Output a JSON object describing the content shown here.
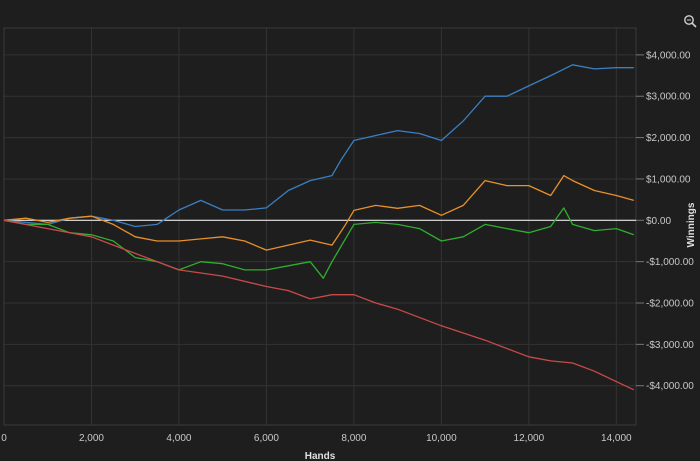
{
  "chart_data": {
    "type": "line",
    "title": "",
    "xlabel": "Hands",
    "ylabel": "Winnings",
    "xlim": [
      0,
      14450
    ],
    "ylim": [
      -4950,
      4650
    ],
    "grid": true,
    "legend": "none",
    "x_ticks": [
      "0",
      "2,000",
      "4,000",
      "6,000",
      "8,000",
      "10,000",
      "12,000",
      "14,000"
    ],
    "x_tick_values": [
      0,
      2000,
      4000,
      6000,
      8000,
      10000,
      12000,
      14000
    ],
    "y_ticks": [
      "$4,000.00",
      "$3,000.00",
      "$2,000.00",
      "$1,000.00",
      "$0.00",
      "-$1,000.00",
      "-$2,000.00",
      "-$3,000.00",
      "-$4,000.00"
    ],
    "y_tick_values": [
      4000,
      3000,
      2000,
      1000,
      0,
      -1000,
      -2000,
      -3000,
      -4000
    ],
    "zero_line_color": "#e6e6e6",
    "series": [
      {
        "color": "#3a7fc1",
        "x": [
          0,
          500,
          1000,
          1500,
          2000,
          2500,
          3000,
          3500,
          4000,
          4500,
          5000,
          5500,
          6000,
          6500,
          7000,
          7500,
          7700,
          8000,
          8500,
          9000,
          9500,
          10000,
          10500,
          11000,
          11500,
          12000,
          12500,
          13000,
          13500,
          14000,
          14400
        ],
        "y": [
          0,
          -50,
          -100,
          50,
          100,
          0,
          -150,
          -100,
          250,
          480,
          250,
          250,
          300,
          720,
          960,
          1080,
          1450,
          1930,
          2050,
          2170,
          2100,
          1930,
          2400,
          3000,
          3000,
          3250,
          3500,
          3760,
          3660,
          3690,
          3690
        ]
      },
      {
        "color": "#e8902a",
        "x": [
          0,
          500,
          1000,
          1500,
          2000,
          2500,
          3000,
          3500,
          4000,
          4500,
          5000,
          5500,
          6000,
          6500,
          7000,
          7500,
          7800,
          8000,
          8500,
          9000,
          9500,
          10000,
          10500,
          11000,
          11500,
          12000,
          12500,
          12800,
          13000,
          13500,
          14000,
          14400
        ],
        "y": [
          0,
          50,
          -50,
          50,
          100,
          -100,
          -400,
          -500,
          -500,
          -450,
          -400,
          -500,
          -720,
          -600,
          -480,
          -600,
          -120,
          240,
          360,
          290,
          360,
          120,
          360,
          960,
          840,
          840,
          600,
          1080,
          960,
          720,
          600,
          480
        ]
      },
      {
        "color": "#2fae2f",
        "x": [
          0,
          500,
          1000,
          1500,
          2000,
          2500,
          3000,
          3500,
          4000,
          4500,
          5000,
          5500,
          6000,
          6500,
          7000,
          7300,
          7500,
          8000,
          8500,
          9000,
          9500,
          10000,
          10500,
          11000,
          11500,
          12000,
          12500,
          12800,
          13000,
          13500,
          14000,
          14400
        ],
        "y": [
          0,
          -100,
          -100,
          -300,
          -350,
          -500,
          -900,
          -1000,
          -1200,
          -1000,
          -1050,
          -1200,
          -1200,
          -1100,
          -1000,
          -1400,
          -1000,
          -100,
          -50,
          -100,
          -200,
          -500,
          -400,
          -100,
          -200,
          -300,
          -150,
          300,
          -100,
          -250,
          -200,
          -350
        ]
      },
      {
        "color": "#c94a4a",
        "x": [
          0,
          1000,
          2000,
          2500,
          3000,
          4000,
          5000,
          6000,
          6500,
          7000,
          7500,
          8000,
          8500,
          9000,
          10000,
          11000,
          12000,
          12500,
          13000,
          13500,
          14000,
          14400
        ],
        "y": [
          0,
          -200,
          -400,
          -600,
          -800,
          -1200,
          -1350,
          -1600,
          -1700,
          -1900,
          -1800,
          -1800,
          -2000,
          -2150,
          -2550,
          -2900,
          -3300,
          -3400,
          -3450,
          -3650,
          -3900,
          -4100
        ]
      }
    ]
  },
  "toolbar": {
    "zoom_icon": "magnifier-zoom-icon"
  }
}
